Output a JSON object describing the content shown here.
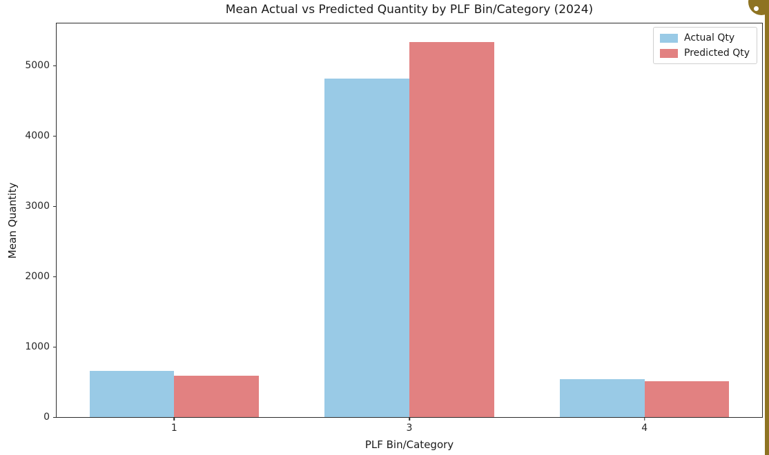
{
  "chart_data": {
    "type": "bar",
    "title": "Mean Actual vs Predicted Quantity by PLF Bin/Category (2024)",
    "xlabel": "PLF Bin/Category",
    "ylabel": "Mean Quantity",
    "categories": [
      "1",
      "3",
      "4"
    ],
    "series": [
      {
        "name": "Actual Qty",
        "color": "#99cae6",
        "values": [
          655,
          4820,
          540
        ]
      },
      {
        "name": "Predicted Qty",
        "color": "#e28181",
        "values": [
          585,
          5340,
          510
        ]
      }
    ],
    "yticks": [
      0,
      1000,
      2000,
      3000,
      4000,
      5000
    ],
    "ylim": [
      0,
      5600
    ],
    "grid": false,
    "legend_position": "upper right",
    "axis_color": "#2b2b2b",
    "background_color": "#ffffff"
  },
  "window": {
    "right_border_color": "#8e7322",
    "corner_badge_color": "#8e7322"
  }
}
